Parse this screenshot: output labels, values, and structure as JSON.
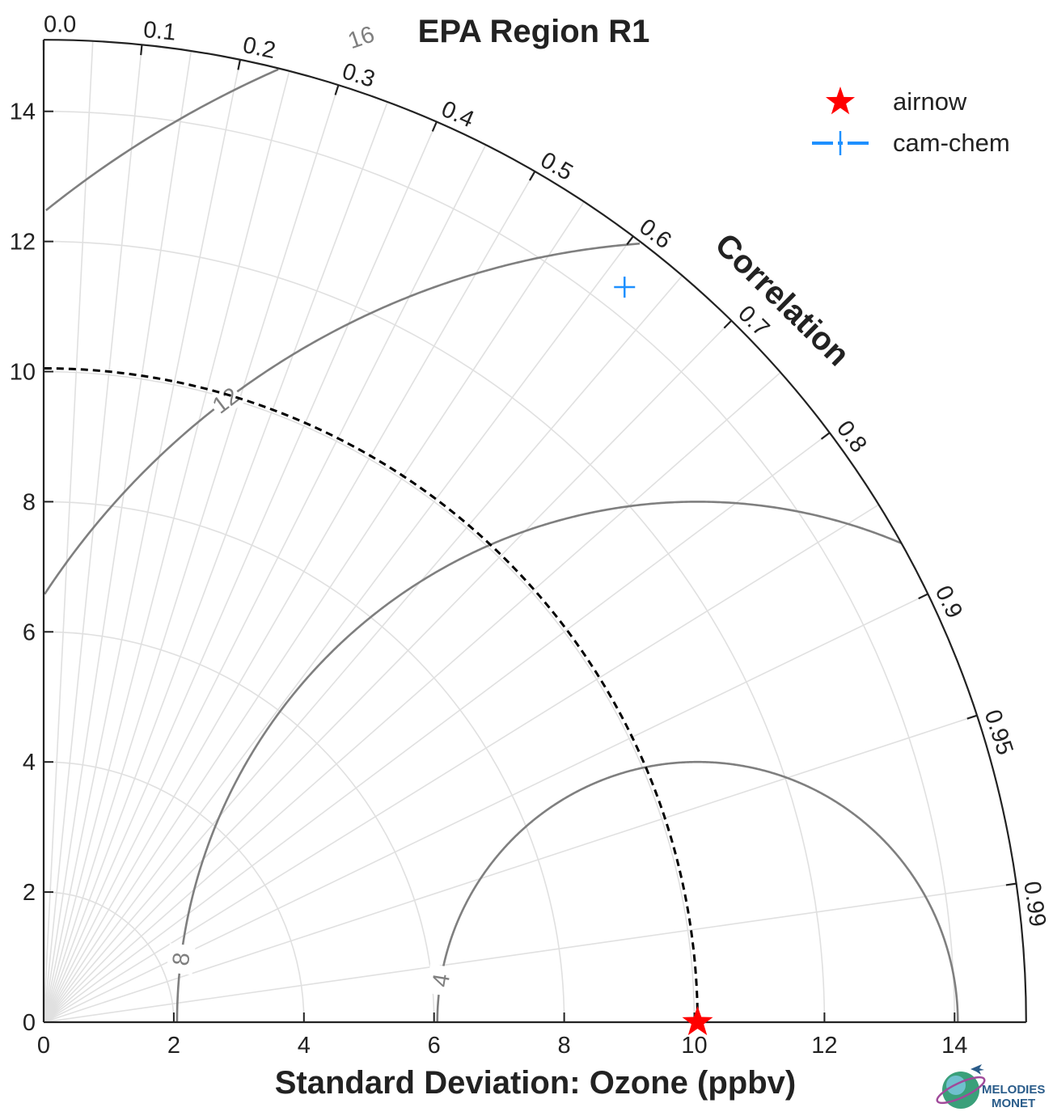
{
  "chart_data": {
    "type": "scatter",
    "diagram": "taylor",
    "title": "EPA Region R1",
    "xlabel": "Standard Deviation: Ozone (ppbv)",
    "ylabel": "",
    "angle_label": "Correlation",
    "std_ticks": [
      0,
      2,
      4,
      6,
      8,
      10,
      12,
      14
    ],
    "std_tick_labels": [
      "0",
      "2",
      "4",
      "6",
      "8",
      "10",
      "12",
      "14"
    ],
    "std_range": [
      0,
      15.1
    ],
    "correlation_ticks": [
      0.0,
      0.1,
      0.2,
      0.3,
      0.4,
      0.5,
      0.6,
      0.7,
      0.8,
      0.9,
      0.95,
      0.99
    ],
    "correlation_tick_labels": [
      "0.0",
      "0.1",
      "0.2",
      "0.3",
      "0.4",
      "0.5",
      "0.6",
      "0.7",
      "0.8",
      "0.9",
      "0.95",
      "0.99"
    ],
    "rms_contours": [
      4,
      8,
      12,
      16
    ],
    "rms_contour_labels": [
      "4",
      "8",
      "12",
      "16"
    ],
    "reference_std": 10.05,
    "grid": true,
    "legend_position": "top-right",
    "series": [
      {
        "name": "airnow",
        "std": 10.05,
        "correlation": 1.0,
        "marker": "star",
        "color": "#ff0000"
      },
      {
        "name": "cam-chem",
        "std": 14.4,
        "correlation": 0.62,
        "marker": "plus",
        "color": "#1e90ff"
      }
    ]
  },
  "logo": {
    "text_line1": "MELODIES",
    "text_line2": "MONET"
  }
}
